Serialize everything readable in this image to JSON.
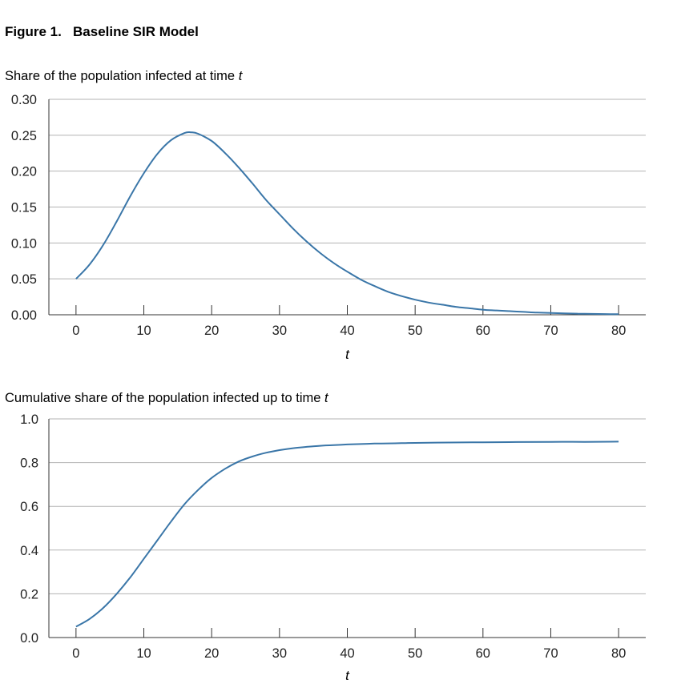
{
  "figure_title": "Figure 1.   Baseline SIR Model",
  "line_color": "#3a76a8",
  "grid_color": "#b3b3b3",
  "chart_data": [
    {
      "type": "line",
      "title": "Share of the population infected at time",
      "title_var": "t",
      "xlabel": "t",
      "ylabel": "",
      "xlim": [
        -4,
        84
      ],
      "ylim": [
        0,
        0.3
      ],
      "xticks": [
        0,
        10,
        20,
        30,
        40,
        50,
        60,
        70,
        80
      ],
      "yticks": [
        "0.00",
        "0.05",
        "0.10",
        "0.15",
        "0.20",
        "0.25",
        "0.30"
      ],
      "grid": true,
      "series": [
        {
          "x": [
            0,
            2,
            4,
            6,
            8,
            10,
            12,
            14,
            16,
            17,
            18,
            20,
            22,
            24,
            26,
            28,
            30,
            32,
            34,
            36,
            38,
            40,
            42,
            44,
            46,
            48,
            50,
            52,
            54,
            56,
            58,
            60,
            62,
            64,
            66,
            68,
            70,
            72,
            74,
            76,
            78,
            80
          ],
          "values": [
            0.05,
            0.07,
            0.097,
            0.13,
            0.165,
            0.197,
            0.224,
            0.243,
            0.253,
            0.254,
            0.252,
            0.242,
            0.225,
            0.205,
            0.183,
            0.16,
            0.14,
            0.12,
            0.102,
            0.086,
            0.072,
            0.06,
            0.049,
            0.04,
            0.032,
            0.026,
            0.021,
            0.017,
            0.014,
            0.011,
            0.009,
            0.007,
            0.006,
            0.005,
            0.004,
            0.003,
            0.0025,
            0.002,
            0.0015,
            0.0012,
            0.001,
            0.0008
          ]
        }
      ]
    },
    {
      "type": "line",
      "title": "Cumulative share of the population infected up to time",
      "title_var": "t",
      "xlabel": "t",
      "ylabel": "",
      "xlim": [
        -4,
        84
      ],
      "ylim": [
        0,
        1.0
      ],
      "xticks": [
        0,
        10,
        20,
        30,
        40,
        50,
        60,
        70,
        80
      ],
      "yticks": [
        "0.0",
        "0.2",
        "0.4",
        "0.6",
        "0.8",
        "1.0"
      ],
      "grid": true,
      "series": [
        {
          "x": [
            0,
            2,
            4,
            6,
            8,
            10,
            12,
            14,
            16,
            18,
            20,
            22,
            24,
            26,
            28,
            30,
            32,
            34,
            36,
            38,
            40,
            42,
            44,
            46,
            48,
            50,
            55,
            60,
            65,
            70,
            75,
            80
          ],
          "values": [
            0.05,
            0.085,
            0.135,
            0.2,
            0.275,
            0.36,
            0.445,
            0.53,
            0.61,
            0.675,
            0.73,
            0.772,
            0.805,
            0.828,
            0.845,
            0.857,
            0.866,
            0.872,
            0.877,
            0.88,
            0.883,
            0.885,
            0.887,
            0.888,
            0.889,
            0.89,
            0.892,
            0.893,
            0.894,
            0.895,
            0.895,
            0.896
          ]
        }
      ]
    }
  ]
}
